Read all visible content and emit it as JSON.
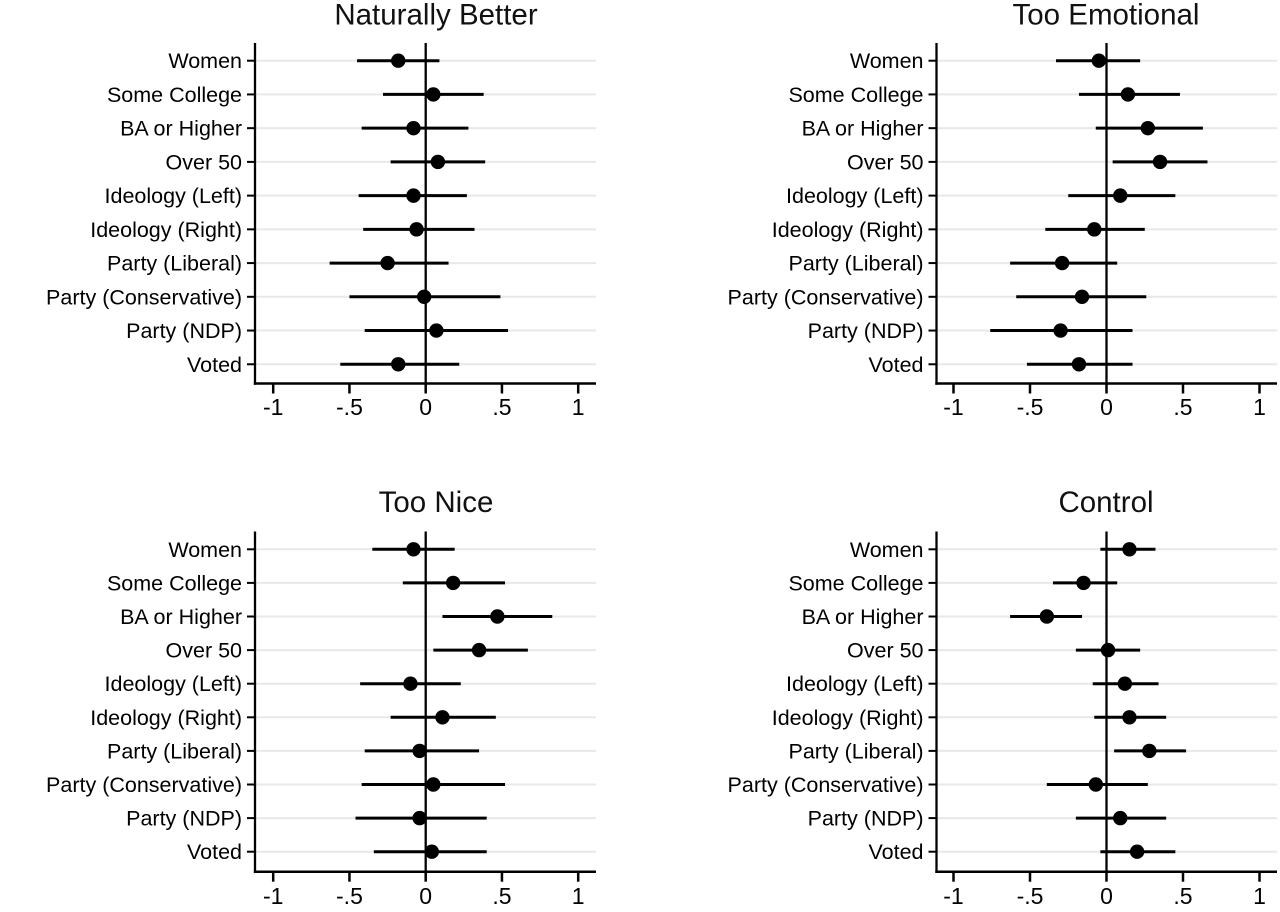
{
  "figure": {
    "background": "#ffffff",
    "axis_color": "#000000",
    "marker_color": "#000000",
    "grid_color": "#e8e8e8",
    "categories": [
      "Women",
      "Some College",
      "BA or Higher",
      "Over 50",
      "Ideology (Left)",
      "Ideology (Right)",
      "Party (Liberal)",
      "Party (Conservative)",
      "Party (NDP)",
      "Voted"
    ]
  },
  "chart_data": [
    {
      "type": "scatter",
      "subtype": "dot-and-whisker coefficient plot",
      "title": "Naturally Better",
      "xlabel": "",
      "ylabel": "",
      "xlim": [
        -1.12,
        1.12
      ],
      "zero_line": true,
      "grid": "horizontal",
      "legend": "none",
      "x_ticks": [
        -1,
        -0.5,
        0,
        0.5,
        1
      ],
      "x_tick_labels": [
        "-1",
        "-.5",
        "0",
        ".5",
        "1"
      ],
      "points": [
        {
          "label": "Women",
          "estimate": -0.18,
          "ci_low": -0.45,
          "ci_high": 0.09
        },
        {
          "label": "Some College",
          "estimate": 0.05,
          "ci_low": -0.28,
          "ci_high": 0.38
        },
        {
          "label": "BA or Higher",
          "estimate": -0.08,
          "ci_low": -0.42,
          "ci_high": 0.28
        },
        {
          "label": "Over 50",
          "estimate": 0.08,
          "ci_low": -0.23,
          "ci_high": 0.39
        },
        {
          "label": "Ideology (Left)",
          "estimate": -0.08,
          "ci_low": -0.44,
          "ci_high": 0.27
        },
        {
          "label": "Ideology (Right)",
          "estimate": -0.06,
          "ci_low": -0.41,
          "ci_high": 0.32
        },
        {
          "label": "Party (Liberal)",
          "estimate": -0.25,
          "ci_low": -0.63,
          "ci_high": 0.15
        },
        {
          "label": "Party (Conservative)",
          "estimate": -0.01,
          "ci_low": -0.5,
          "ci_high": 0.49
        },
        {
          "label": "Party (NDP)",
          "estimate": 0.07,
          "ci_low": -0.4,
          "ci_high": 0.54
        },
        {
          "label": "Voted",
          "estimate": -0.18,
          "ci_low": -0.56,
          "ci_high": 0.22
        }
      ]
    },
    {
      "type": "scatter",
      "subtype": "dot-and-whisker coefficient plot",
      "title": "Too Emotional",
      "xlabel": "",
      "ylabel": "",
      "xlim": [
        -1.12,
        1.12
      ],
      "zero_line": true,
      "grid": "horizontal",
      "legend": "none",
      "x_ticks": [
        -1,
        -0.5,
        0,
        0.5,
        1
      ],
      "x_tick_labels": [
        "-1",
        "-.5",
        "0",
        ".5",
        "1"
      ],
      "points": [
        {
          "label": "Women",
          "estimate": -0.05,
          "ci_low": -0.33,
          "ci_high": 0.22
        },
        {
          "label": "Some College",
          "estimate": 0.14,
          "ci_low": -0.18,
          "ci_high": 0.48
        },
        {
          "label": "BA or Higher",
          "estimate": 0.27,
          "ci_low": -0.07,
          "ci_high": 0.63
        },
        {
          "label": "Over 50",
          "estimate": 0.35,
          "ci_low": 0.04,
          "ci_high": 0.66
        },
        {
          "label": "Ideology (Left)",
          "estimate": 0.09,
          "ci_low": -0.25,
          "ci_high": 0.45
        },
        {
          "label": "Ideology (Right)",
          "estimate": -0.08,
          "ci_low": -0.4,
          "ci_high": 0.25
        },
        {
          "label": "Party (Liberal)",
          "estimate": -0.29,
          "ci_low": -0.63,
          "ci_high": 0.07
        },
        {
          "label": "Party (Conservative)",
          "estimate": -0.16,
          "ci_low": -0.59,
          "ci_high": 0.26
        },
        {
          "label": "Party (NDP)",
          "estimate": -0.3,
          "ci_low": -0.76,
          "ci_high": 0.17
        },
        {
          "label": "Voted",
          "estimate": -0.18,
          "ci_low": -0.52,
          "ci_high": 0.17
        }
      ]
    },
    {
      "type": "scatter",
      "subtype": "dot-and-whisker coefficient plot",
      "title": "Too Nice",
      "xlabel": "",
      "ylabel": "",
      "xlim": [
        -1.12,
        1.12
      ],
      "zero_line": true,
      "grid": "horizontal",
      "legend": "none",
      "x_ticks": [
        -1,
        -0.5,
        0,
        0.5,
        1
      ],
      "x_tick_labels": [
        "-1",
        "-.5",
        "0",
        ".5",
        "1"
      ],
      "points": [
        {
          "label": "Women",
          "estimate": -0.08,
          "ci_low": -0.35,
          "ci_high": 0.19
        },
        {
          "label": "Some College",
          "estimate": 0.18,
          "ci_low": -0.15,
          "ci_high": 0.52
        },
        {
          "label": "BA or Higher",
          "estimate": 0.47,
          "ci_low": 0.11,
          "ci_high": 0.83
        },
        {
          "label": "Over 50",
          "estimate": 0.35,
          "ci_low": 0.05,
          "ci_high": 0.67
        },
        {
          "label": "Ideology (Left)",
          "estimate": -0.1,
          "ci_low": -0.43,
          "ci_high": 0.23
        },
        {
          "label": "Ideology (Right)",
          "estimate": 0.11,
          "ci_low": -0.23,
          "ci_high": 0.46
        },
        {
          "label": "Party (Liberal)",
          "estimate": -0.04,
          "ci_low": -0.4,
          "ci_high": 0.35
        },
        {
          "label": "Party (Conservative)",
          "estimate": 0.05,
          "ci_low": -0.42,
          "ci_high": 0.52
        },
        {
          "label": "Party (NDP)",
          "estimate": -0.04,
          "ci_low": -0.46,
          "ci_high": 0.4
        },
        {
          "label": "Voted",
          "estimate": 0.04,
          "ci_low": -0.34,
          "ci_high": 0.4
        }
      ]
    },
    {
      "type": "scatter",
      "subtype": "dot-and-whisker coefficient plot",
      "title": "Control",
      "xlabel": "",
      "ylabel": "",
      "xlim": [
        -1.12,
        1.12
      ],
      "zero_line": true,
      "grid": "horizontal",
      "legend": "none",
      "x_ticks": [
        -1,
        -0.5,
        0,
        0.5,
        1
      ],
      "x_tick_labels": [
        "-1",
        "-.5",
        "0",
        ".5",
        "1"
      ],
      "points": [
        {
          "label": "Women",
          "estimate": 0.15,
          "ci_low": -0.04,
          "ci_high": 0.32
        },
        {
          "label": "Some College",
          "estimate": -0.15,
          "ci_low": -0.35,
          "ci_high": 0.07
        },
        {
          "label": "BA or Higher",
          "estimate": -0.39,
          "ci_low": -0.63,
          "ci_high": -0.16
        },
        {
          "label": "Over 50",
          "estimate": 0.01,
          "ci_low": -0.2,
          "ci_high": 0.22
        },
        {
          "label": "Ideology (Left)",
          "estimate": 0.12,
          "ci_low": -0.09,
          "ci_high": 0.34
        },
        {
          "label": "Ideology (Right)",
          "estimate": 0.15,
          "ci_low": -0.08,
          "ci_high": 0.39
        },
        {
          "label": "Party (Liberal)",
          "estimate": 0.28,
          "ci_low": 0.05,
          "ci_high": 0.52
        },
        {
          "label": "Party (Conservative)",
          "estimate": -0.07,
          "ci_low": -0.39,
          "ci_high": 0.27
        },
        {
          "label": "Party (NDP)",
          "estimate": 0.09,
          "ci_low": -0.2,
          "ci_high": 0.39
        },
        {
          "label": "Voted",
          "estimate": 0.2,
          "ci_low": -0.04,
          "ci_high": 0.45
        }
      ]
    }
  ]
}
